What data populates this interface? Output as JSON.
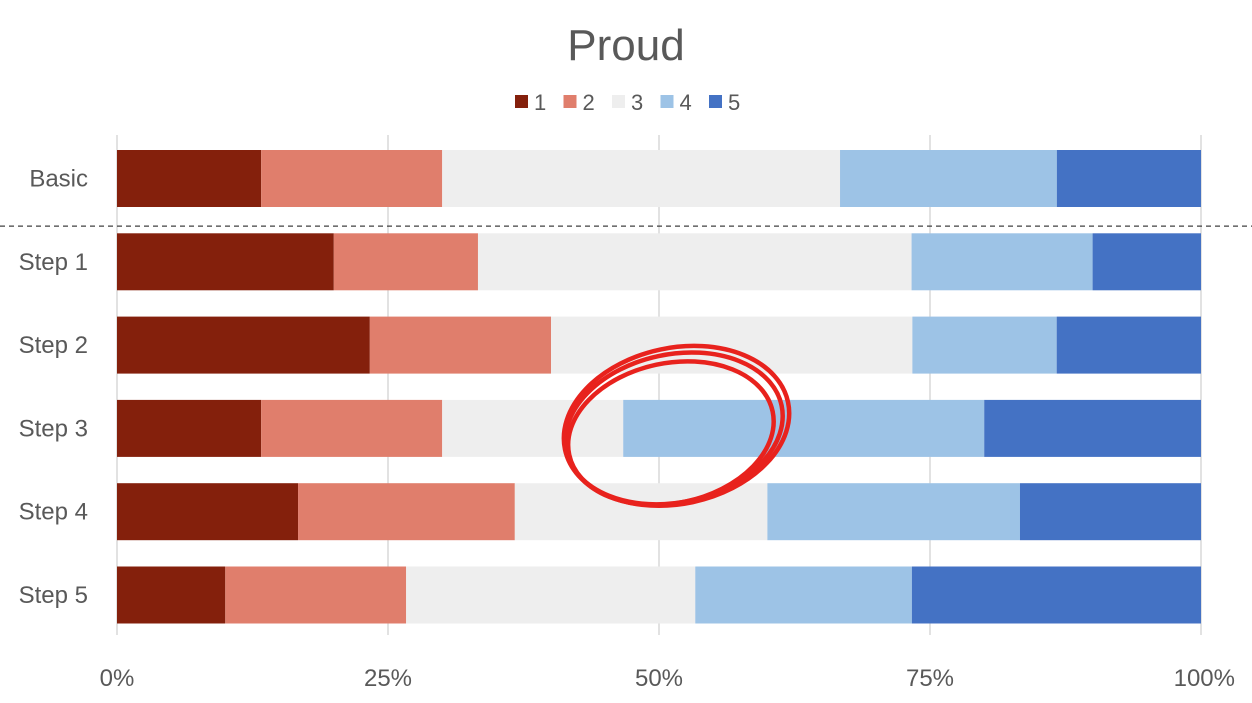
{
  "chart_data": {
    "type": "bar",
    "orientation": "horizontal",
    "stacked": "percent",
    "title": "Proud",
    "categories": [
      "Basic",
      "Step 1",
      "Step 2",
      "Step 3",
      "Step 4",
      "Step 5"
    ],
    "series": [
      {
        "name": "1",
        "color": "#84200C",
        "values": [
          13.3,
          20.0,
          23.3,
          13.3,
          16.7,
          10.0
        ]
      },
      {
        "name": "2",
        "color": "#E07E6C",
        "values": [
          16.7,
          13.3,
          16.7,
          16.7,
          20.0,
          16.7
        ]
      },
      {
        "name": "3",
        "color": "#EEEEEE",
        "values": [
          36.7,
          40.0,
          33.3,
          16.7,
          23.3,
          26.7
        ]
      },
      {
        "name": "4",
        "color": "#9DC3E6",
        "values": [
          20.0,
          16.7,
          13.3,
          33.3,
          23.3,
          20.0
        ]
      },
      {
        "name": "5",
        "color": "#4472C4",
        "values": [
          13.3,
          10.0,
          13.3,
          20.0,
          16.7,
          26.7
        ]
      }
    ],
    "xlim": [
      0,
      100
    ],
    "x_ticks": [
      "0%",
      "25%",
      "50%",
      "75%",
      "100%"
    ],
    "grid": "vertical",
    "legend_position": "top",
    "annotations": [
      {
        "type": "dashed-separator",
        "between": [
          "Basic",
          "Step 1"
        ]
      },
      {
        "type": "hand-drawn-circle",
        "color": "#E8221D",
        "category": "Step 3",
        "x_center": 50
      }
    ]
  }
}
